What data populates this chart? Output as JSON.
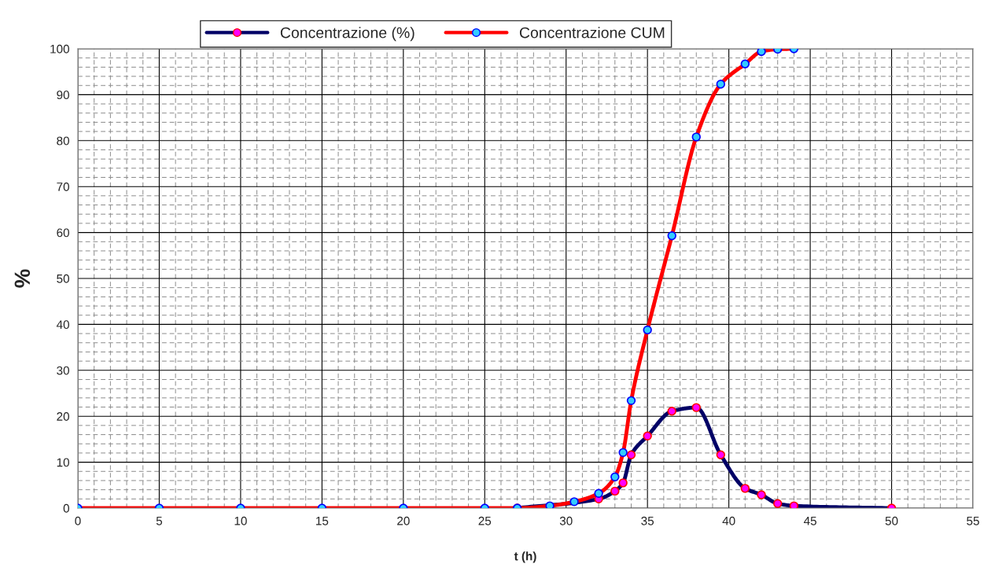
{
  "chart_data": {
    "type": "line",
    "xlabel": "t (h)",
    "ylabel": "%",
    "xlim": [
      0,
      55
    ],
    "xticks": [
      0,
      5,
      10,
      15,
      20,
      25,
      30,
      35,
      40,
      45,
      50,
      55
    ],
    "ylim": [
      0,
      100
    ],
    "yticks": [
      0,
      10,
      20,
      30,
      40,
      50,
      60,
      70,
      80,
      90,
      100
    ],
    "grid": true,
    "legend": "top",
    "marker": "circle",
    "line_style": "solid",
    "series": [
      {
        "name": "Concentrazione (%)",
        "color": "#000066",
        "x": [
          27,
          32,
          33,
          33.5,
          34,
          35,
          36.5,
          38,
          39.5,
          41,
          42,
          43,
          44,
          50
        ],
        "values": [
          0,
          2.0,
          3.7,
          5.5,
          11.6,
          15.7,
          21.1,
          21.9,
          11.6,
          4.3,
          2.9,
          1.0,
          0.5,
          0
        ]
      },
      {
        "name": "Concentrazione CUM",
        "color": "#ff0000",
        "x": [
          0,
          5,
          10,
          15,
          20,
          25,
          27,
          29,
          30.5,
          32,
          33,
          33.5,
          34,
          35,
          36.5,
          38,
          39.5,
          41,
          42,
          43,
          44
        ],
        "values": [
          0,
          0,
          0,
          0,
          0,
          0,
          0,
          0.5,
          1.4,
          3.2,
          6.8,
          12.1,
          23.4,
          38.8,
          59.3,
          80.8,
          92.3,
          96.7,
          99.4,
          99.9,
          100
        ]
      }
    ]
  }
}
